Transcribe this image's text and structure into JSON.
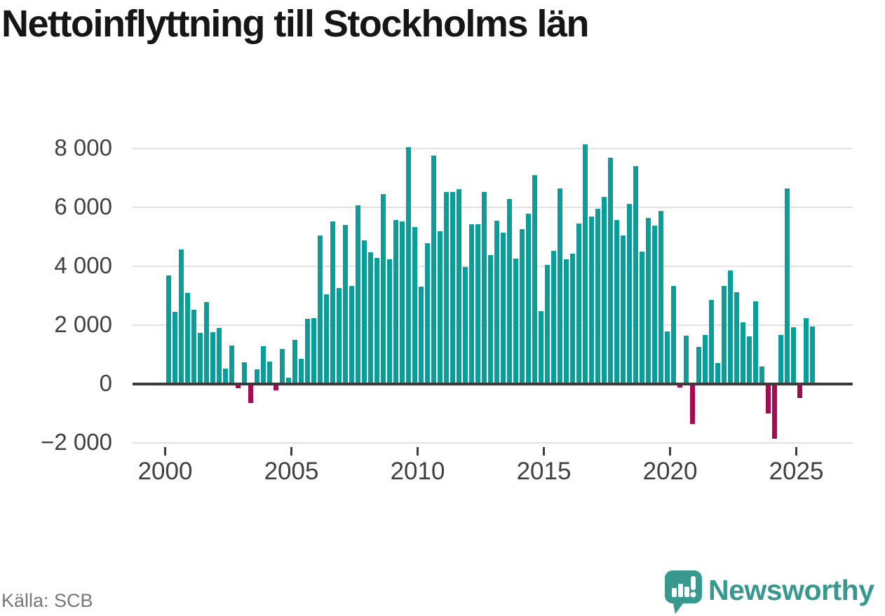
{
  "title": "Nettoinflyttning till Stockholms län",
  "source": "Källa: SCB",
  "logo": {
    "text": "Newsworthy"
  },
  "colors": {
    "bar_positive": "#0a9e9b",
    "bar_negative": "#a50b50",
    "grid": "#e2e2e2",
    "zero_axis": "#3b3b3b",
    "axis_text": "#404040",
    "title_text": "#161616",
    "source_text": "#767676",
    "logo_teal": "#37988e"
  },
  "y_axis": {
    "ticks": [
      {
        "label": "8 000",
        "value": 8000
      },
      {
        "label": "6 000",
        "value": 6000
      },
      {
        "label": "4 000",
        "value": 4000
      },
      {
        "label": "2 000",
        "value": 2000
      },
      {
        "label": "0",
        "value": 0
      },
      {
        "label": "−2 000",
        "value": -2000
      }
    ]
  },
  "x_axis": {
    "years": [
      "2000",
      "2005",
      "2010",
      "2015",
      "2020",
      "2025"
    ]
  },
  "chart_data": {
    "type": "bar",
    "title": "Nettoinflyttning till Stockholms län",
    "frequency": "quarterly",
    "start": "2000-Q1",
    "end": "2025-Q3",
    "ylim": [
      -2000,
      8000
    ],
    "grid": "horizontal",
    "legend": "none",
    "periods": [
      {
        "year": 2000,
        "q": [
          3700,
          2460,
          4580,
          3090
        ]
      },
      {
        "year": 2001,
        "q": [
          2520,
          1730,
          2790,
          1770
        ]
      },
      {
        "year": 2002,
        "q": [
          1900,
          525,
          1315,
          -150
        ]
      },
      {
        "year": 2003,
        "q": [
          730,
          -655,
          500,
          1285
        ]
      },
      {
        "year": 2004,
        "q": [
          770,
          -225,
          1200,
          215
        ]
      },
      {
        "year": 2005,
        "q": [
          1510,
          870,
          2225,
          2245
        ]
      },
      {
        "year": 2006,
        "q": [
          5065,
          3055,
          5520,
          3260
        ]
      },
      {
        "year": 2007,
        "q": [
          5410,
          3330,
          6080,
          4880
        ]
      },
      {
        "year": 2008,
        "q": [
          4490,
          4280,
          6455,
          4245
        ]
      },
      {
        "year": 2009,
        "q": [
          5580,
          5540,
          8050,
          5340
        ]
      },
      {
        "year": 2010,
        "q": [
          3315,
          4785,
          7780,
          5195
        ]
      },
      {
        "year": 2011,
        "q": [
          6540,
          6520,
          6620,
          3970
        ]
      },
      {
        "year": 2012,
        "q": [
          5430,
          5430,
          6520,
          4390
        ]
      },
      {
        "year": 2013,
        "q": [
          5560,
          5155,
          6290,
          4270
        ]
      },
      {
        "year": 2014,
        "q": [
          5265,
          5795,
          7100,
          2490
        ]
      },
      {
        "year": 2015,
        "q": [
          4055,
          4530,
          6655,
          4245
        ]
      },
      {
        "year": 2016,
        "q": [
          4445,
          5450,
          8160,
          5690
        ]
      },
      {
        "year": 2017,
        "q": [
          5960,
          6355,
          7700,
          5580
        ]
      },
      {
        "year": 2018,
        "q": [
          5045,
          6120,
          7425,
          4505
        ]
      },
      {
        "year": 2019,
        "q": [
          5650,
          5390,
          5890,
          1785
        ]
      },
      {
        "year": 2020,
        "q": [
          3330,
          -120,
          1640,
          -1370
        ]
      },
      {
        "year": 2021,
        "q": [
          1265,
          1665,
          2850,
          710
        ]
      },
      {
        "year": 2022,
        "q": [
          3340,
          3860,
          3115,
          2090
        ]
      },
      {
        "year": 2023,
        "q": [
          1620,
          2805,
          590,
          -1005
        ]
      },
      {
        "year": 2024,
        "q": [
          -1855,
          1680,
          6660,
          1935
        ]
      },
      {
        "year": 2025,
        "q": [
          -470,
          2240,
          1945
        ]
      }
    ]
  }
}
